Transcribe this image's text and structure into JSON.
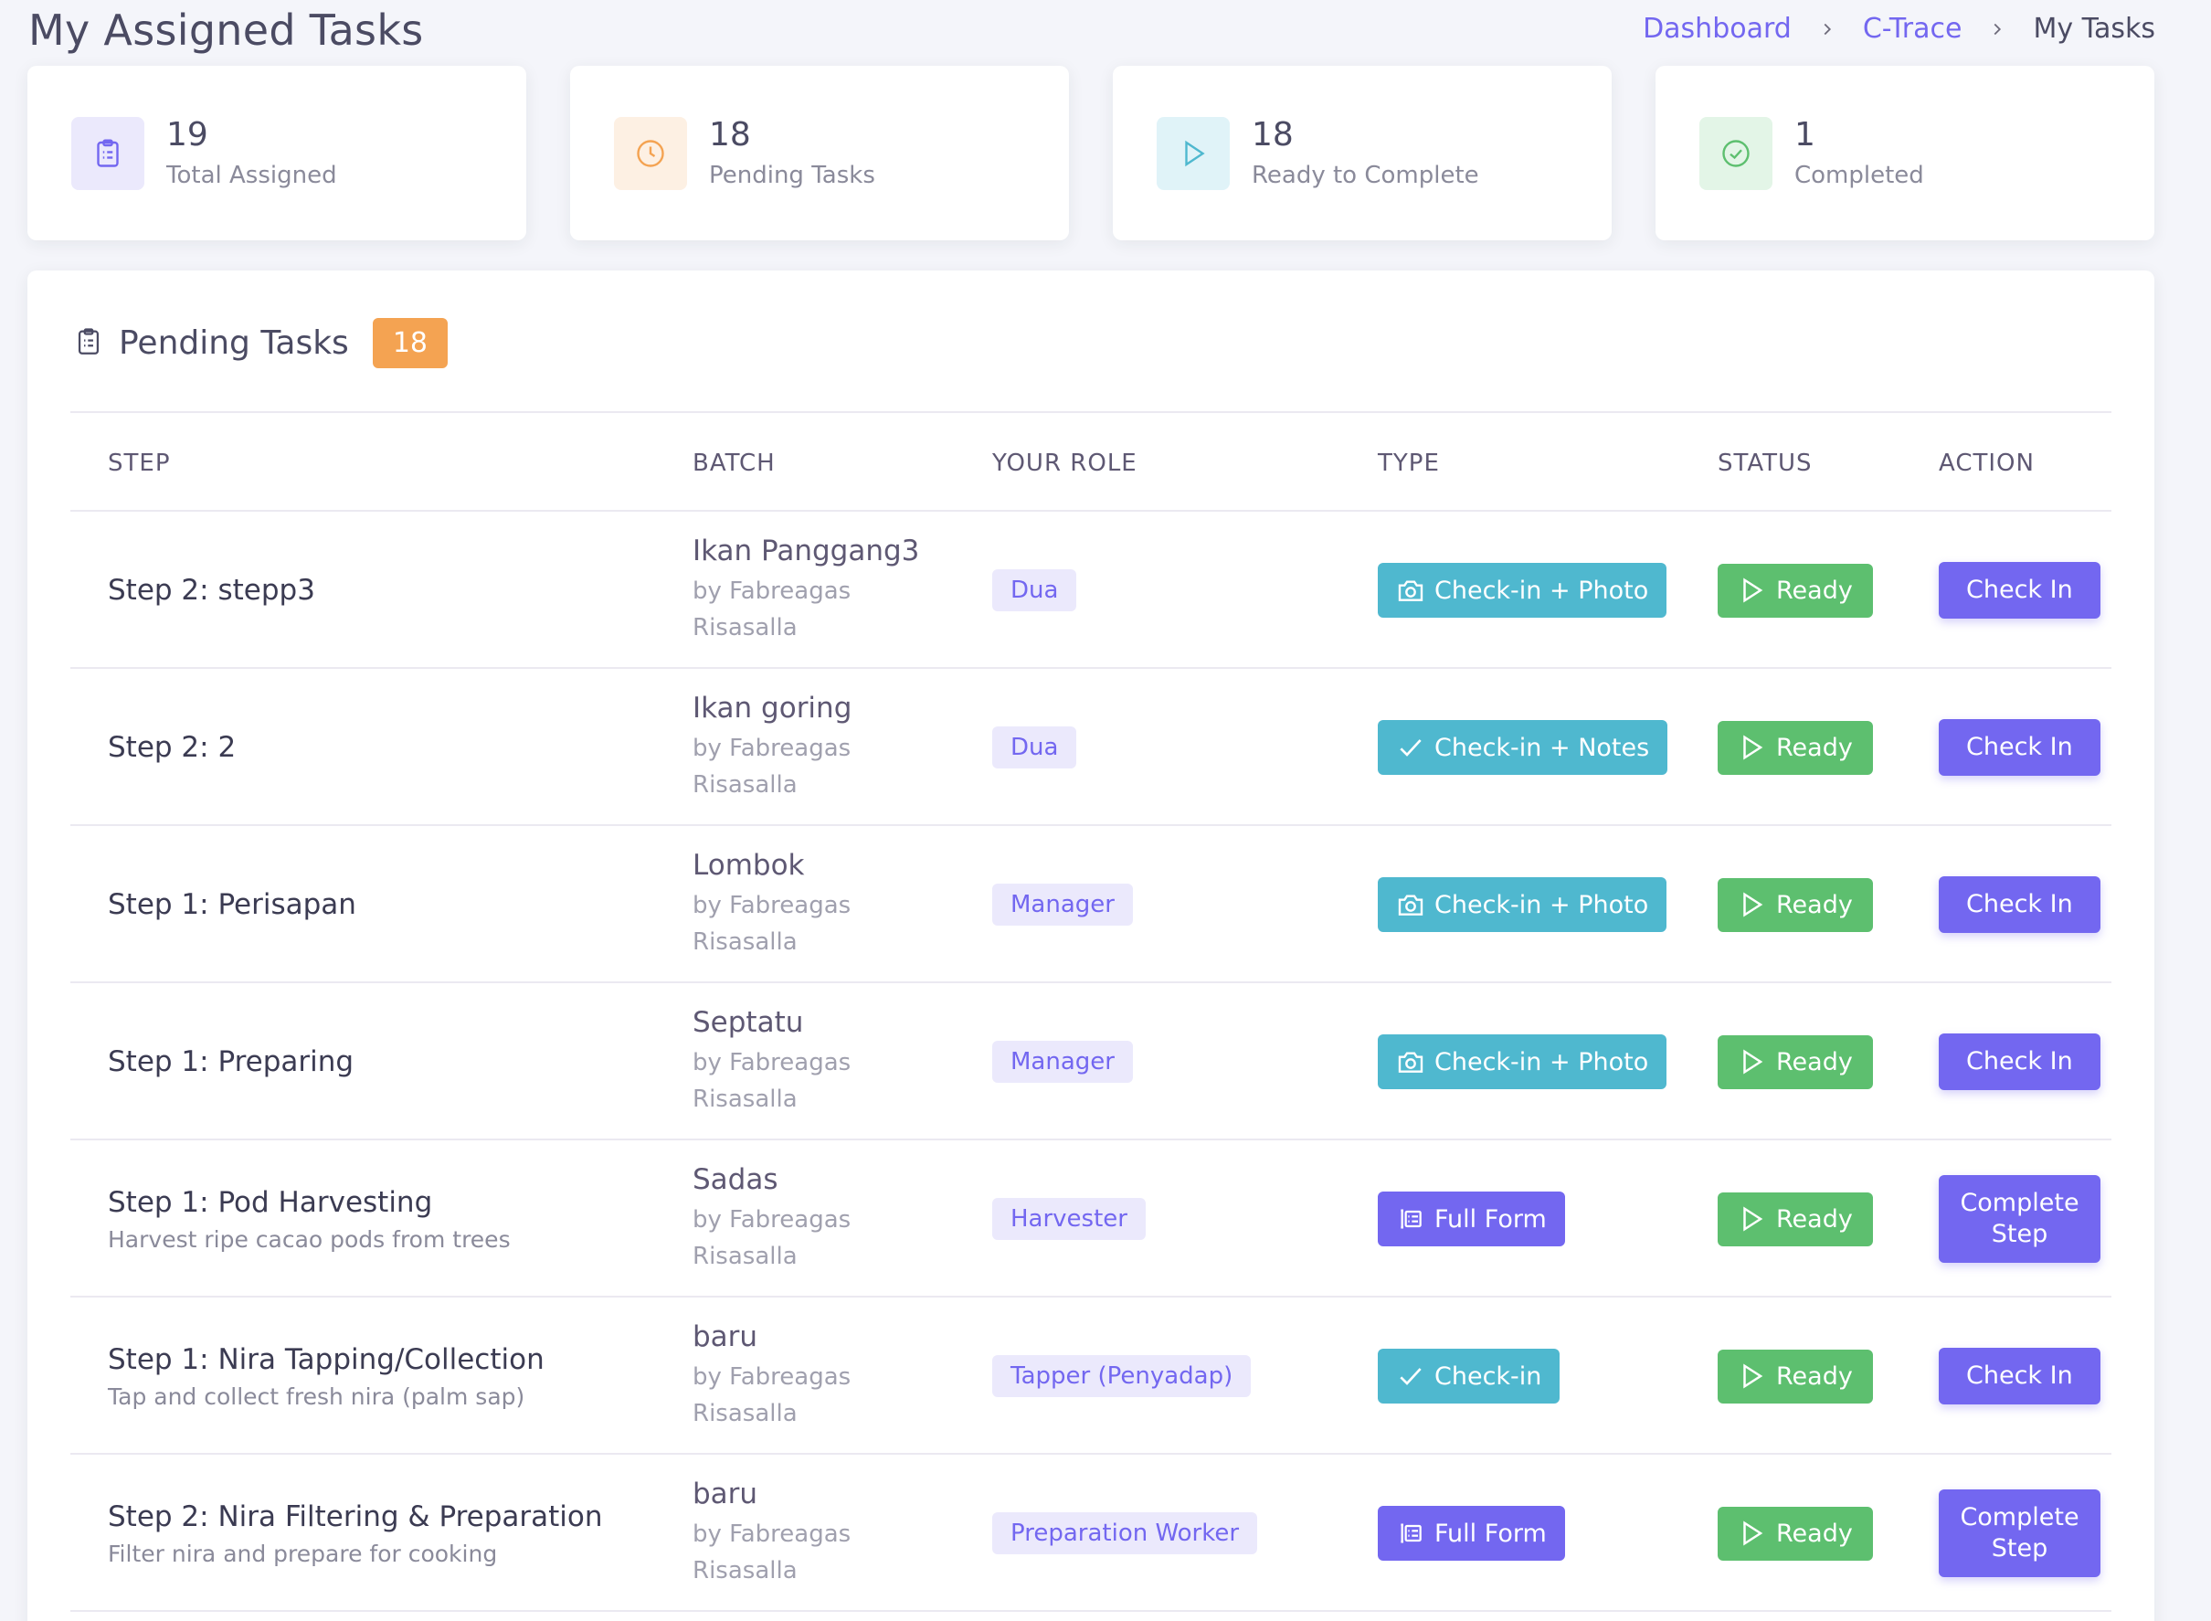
{
  "page": {
    "title": "My Assigned Tasks"
  },
  "breadcrumb": {
    "items": [
      "Dashboard",
      "C-Trace"
    ],
    "current": "My Tasks"
  },
  "stats": [
    {
      "value": "19",
      "label": "Total Assigned",
      "icon": "clipboard-icon",
      "color": "#7367f0"
    },
    {
      "value": "18",
      "label": "Pending Tasks",
      "icon": "clock-icon",
      "color": "#f4a352"
    },
    {
      "value": "18",
      "label": "Ready to Complete",
      "icon": "play-icon",
      "color": "#4fb8cf"
    },
    {
      "value": "1",
      "label": "Completed",
      "icon": "check-circle-icon",
      "color": "#5dbf6f"
    }
  ],
  "panel": {
    "title": "Pending Tasks",
    "count": "18"
  },
  "table": {
    "headers": [
      "STEP",
      "BATCH",
      "YOUR ROLE",
      "TYPE",
      "STATUS",
      "ACTION"
    ],
    "rows": [
      {
        "step": "Step 2: stepp3",
        "desc": "",
        "batch": "Ikan Panggang3",
        "by1": "by Fabreagas",
        "by2": "Risasalla",
        "role": "Dua",
        "type": "Check-in + Photo",
        "type_icon": "camera-icon",
        "status": "Ready",
        "action": "Check In"
      },
      {
        "step": "Step 2: 2",
        "desc": "",
        "batch": "Ikan goring",
        "by1": "by Fabreagas",
        "by2": "Risasalla",
        "role": "Dua",
        "type": "Check-in + Notes",
        "type_icon": "check-icon",
        "status": "Ready",
        "action": "Check In"
      },
      {
        "step": "Step 1: Perisapan",
        "desc": "",
        "batch": "Lombok",
        "by1": "by Fabreagas",
        "by2": "Risasalla",
        "role": "Manager",
        "type": "Check-in + Photo",
        "type_icon": "camera-icon",
        "status": "Ready",
        "action": "Check In"
      },
      {
        "step": "Step 1: Preparing",
        "desc": "",
        "batch": "Septatu",
        "by1": "by Fabreagas",
        "by2": "Risasalla",
        "role": "Manager",
        "type": "Check-in + Photo",
        "type_icon": "camera-icon",
        "status": "Ready",
        "action": "Check In"
      },
      {
        "step": "Step 1: Pod Harvesting",
        "desc": "Harvest ripe cacao pods from trees",
        "batch": "Sadas",
        "by1": "by Fabreagas",
        "by2": "Risasalla",
        "role": "Harvester",
        "type": "Full Form",
        "type_icon": "form-icon",
        "status": "Ready",
        "action": "Complete Step"
      },
      {
        "step": "Step 1: Nira Tapping/Collection",
        "desc": "Tap and collect fresh nira (palm sap)",
        "batch": "baru",
        "by1": "by Fabreagas",
        "by2": "Risasalla",
        "role": "Tapper (Penyadap)",
        "type": "Check-in",
        "type_icon": "check-icon",
        "status": "Ready",
        "action": "Check In"
      },
      {
        "step": "Step 2: Nira Filtering & Preparation",
        "desc": "Filter nira and prepare for cooking",
        "batch": "baru",
        "by1": "by Fabreagas",
        "by2": "Risasalla",
        "role": "Preparation Worker",
        "type": "Full Form",
        "type_icon": "form-icon",
        "status": "Ready",
        "action": "Complete Step"
      }
    ]
  }
}
